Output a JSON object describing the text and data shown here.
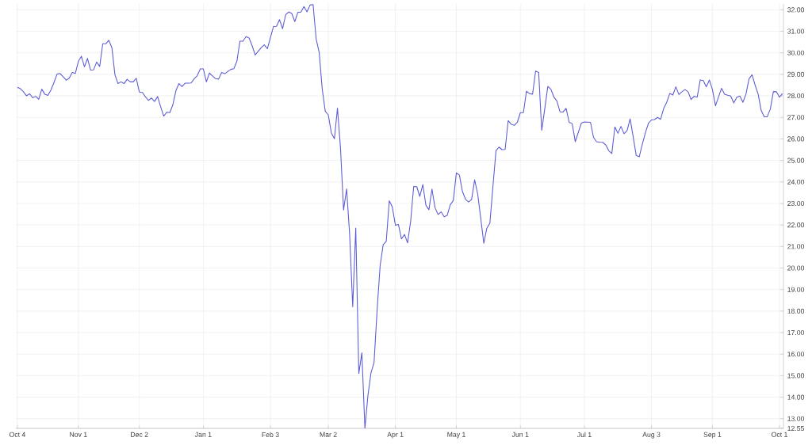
{
  "chart_data": {
    "type": "line",
    "grid": true,
    "categories": [
      "Oct 4",
      null,
      null,
      null,
      null,
      null,
      null,
      null,
      null,
      null,
      null,
      null,
      null,
      null,
      null,
      null,
      null,
      null,
      null,
      null,
      "Nov 1",
      null,
      null,
      null,
      null,
      null,
      null,
      null,
      null,
      null,
      null,
      null,
      null,
      null,
      null,
      null,
      null,
      null,
      null,
      null,
      "Dec 2",
      null,
      null,
      null,
      null,
      null,
      null,
      null,
      null,
      null,
      null,
      null,
      null,
      null,
      null,
      null,
      null,
      null,
      null,
      null,
      null,
      "Jan 1",
      null,
      null,
      null,
      null,
      null,
      null,
      null,
      null,
      null,
      null,
      null,
      null,
      null,
      null,
      null,
      null,
      null,
      null,
      null,
      null,
      null,
      "Feb 3",
      null,
      null,
      null,
      null,
      null,
      null,
      null,
      null,
      null,
      null,
      null,
      null,
      null,
      null,
      null,
      null,
      null,
      null,
      "Mar 2",
      null,
      null,
      null,
      null,
      null,
      null,
      null,
      null,
      null,
      null,
      null,
      null,
      null,
      null,
      null,
      null,
      null,
      null,
      null,
      null,
      null,
      "Apr 1",
      null,
      null,
      null,
      null,
      null,
      null,
      null,
      null,
      null,
      null,
      null,
      null,
      null,
      null,
      null,
      null,
      null,
      null,
      null,
      "May 1",
      null,
      null,
      null,
      null,
      null,
      null,
      null,
      null,
      null,
      null,
      null,
      null,
      null,
      null,
      null,
      null,
      null,
      null,
      null,
      null,
      "Jun 1",
      null,
      null,
      null,
      null,
      null,
      null,
      null,
      null,
      null,
      null,
      null,
      null,
      null,
      null,
      null,
      null,
      null,
      null,
      null,
      null,
      "Jul 1",
      null,
      null,
      null,
      null,
      null,
      null,
      null,
      null,
      null,
      null,
      null,
      null,
      null,
      null,
      null,
      null,
      null,
      null,
      null,
      null,
      null,
      "Aug 3",
      null,
      null,
      null,
      null,
      null,
      null,
      null,
      null,
      null,
      null,
      null,
      null,
      null,
      null,
      null,
      null,
      null,
      null,
      null,
      "Sep 1",
      null,
      null,
      null,
      null,
      null,
      null,
      null,
      null,
      null,
      null,
      null,
      null,
      null,
      null,
      null,
      null,
      null,
      null,
      null,
      null,
      null,
      "Oct 1",
      null
    ],
    "series": [
      {
        "color": "#5b5bd6",
        "values": [
          28.4,
          28.33,
          28.19,
          28.0,
          28.1,
          27.91,
          27.98,
          27.84,
          28.31,
          28.08,
          28.02,
          28.27,
          28.62,
          29.01,
          29.04,
          28.89,
          28.73,
          28.82,
          29.09,
          29.04,
          29.6,
          29.84,
          29.35,
          29.74,
          29.2,
          29.21,
          29.57,
          29.37,
          30.42,
          30.42,
          30.58,
          30.24,
          28.98,
          28.57,
          28.65,
          28.57,
          28.77,
          28.65,
          28.65,
          28.82,
          28.18,
          28.16,
          27.95,
          27.79,
          27.9,
          27.74,
          27.97,
          27.49,
          27.06,
          27.24,
          27.22,
          27.59,
          28.24,
          28.57,
          28.43,
          28.59,
          28.59,
          28.6,
          28.8,
          28.94,
          29.25,
          29.25,
          28.65,
          29.06,
          28.93,
          28.8,
          28.78,
          29.09,
          29.03,
          29.13,
          29.23,
          29.26,
          29.6,
          30.54,
          30.54,
          30.75,
          30.69,
          30.33,
          29.9,
          30.07,
          30.24,
          30.37,
          30.19,
          30.7,
          31.22,
          31.23,
          31.54,
          31.12,
          31.77,
          31.9,
          31.83,
          31.45,
          31.88,
          31.89,
          32.15,
          31.9,
          32.22,
          32.24,
          30.65,
          30.02,
          28.31,
          27.28,
          27.11,
          26.27,
          26.01,
          27.43,
          25.55,
          22.7,
          23.68,
          21.54,
          18.2,
          21.86,
          15.1,
          16.06,
          12.55,
          14.09,
          15.13,
          15.61,
          18.04,
          20.12,
          21.09,
          21.24,
          23.13,
          22.83,
          21.99,
          22.02,
          21.35,
          21.56,
          21.17,
          22.16,
          23.79,
          23.78,
          23.33,
          23.88,
          22.92,
          22.71,
          23.67,
          22.8,
          22.49,
          22.61,
          22.38,
          22.45,
          22.94,
          23.14,
          24.42,
          24.32,
          23.55,
          23.2,
          23.07,
          23.19,
          24.1,
          23.44,
          22.3,
          21.15,
          21.85,
          22.09,
          23.8,
          25.45,
          25.62,
          25.5,
          25.51,
          26.85,
          26.68,
          26.63,
          26.77,
          27.22,
          27.22,
          28.22,
          28.1,
          28.08,
          29.15,
          29.09,
          26.4,
          27.4,
          28.44,
          28.31,
          27.94,
          27.75,
          27.26,
          27.25,
          27.42,
          26.77,
          26.71,
          25.87,
          26.3,
          26.73,
          26.79,
          26.78,
          26.77,
          26.07,
          25.87,
          25.85,
          25.84,
          25.72,
          25.45,
          25.32,
          26.56,
          26.26,
          26.58,
          26.24,
          26.39,
          26.93,
          26.1,
          25.23,
          25.17,
          25.75,
          26.28,
          26.73,
          26.88,
          26.9,
          27.0,
          26.91,
          27.41,
          27.7,
          28.11,
          28.04,
          28.42,
          28.06,
          28.19,
          28.29,
          28.19,
          27.83,
          27.98,
          27.94,
          28.74,
          28.71,
          28.42,
          28.74,
          28.29,
          27.54,
          27.95,
          28.35,
          28.08,
          28.03,
          27.99,
          27.67,
          27.94,
          27.99,
          27.7,
          28.08,
          28.79,
          28.98,
          28.5,
          28.08,
          27.32,
          27.03,
          27.03,
          27.39,
          28.2,
          28.19,
          27.94,
          28.11
        ]
      }
    ],
    "ylim": [
      12.55,
      32.27
    ],
    "yticks": [
      {
        "value": 12.55,
        "label": "12.55"
      },
      {
        "value": 13,
        "label": "13.00"
      },
      {
        "value": 14,
        "label": "14.00"
      },
      {
        "value": 15,
        "label": "15.00"
      },
      {
        "value": 16,
        "label": "16.00"
      },
      {
        "value": 17,
        "label": "17.00"
      },
      {
        "value": 18,
        "label": "18.00"
      },
      {
        "value": 19,
        "label": "19.00"
      },
      {
        "value": 20,
        "label": "20.00"
      },
      {
        "value": 21,
        "label": "21.00"
      },
      {
        "value": 22,
        "label": "22.00"
      },
      {
        "value": 23,
        "label": "23.00"
      },
      {
        "value": 24,
        "label": "24.00"
      },
      {
        "value": 25,
        "label": "25.00"
      },
      {
        "value": 26,
        "label": "26.00"
      },
      {
        "value": 27,
        "label": "27.00"
      },
      {
        "value": 28,
        "label": "28.00"
      },
      {
        "value": 29,
        "label": "29.00"
      },
      {
        "value": 30,
        "label": "30.00"
      },
      {
        "value": 31,
        "label": "31.00"
      },
      {
        "value": 32,
        "label": "32.00"
      }
    ]
  }
}
